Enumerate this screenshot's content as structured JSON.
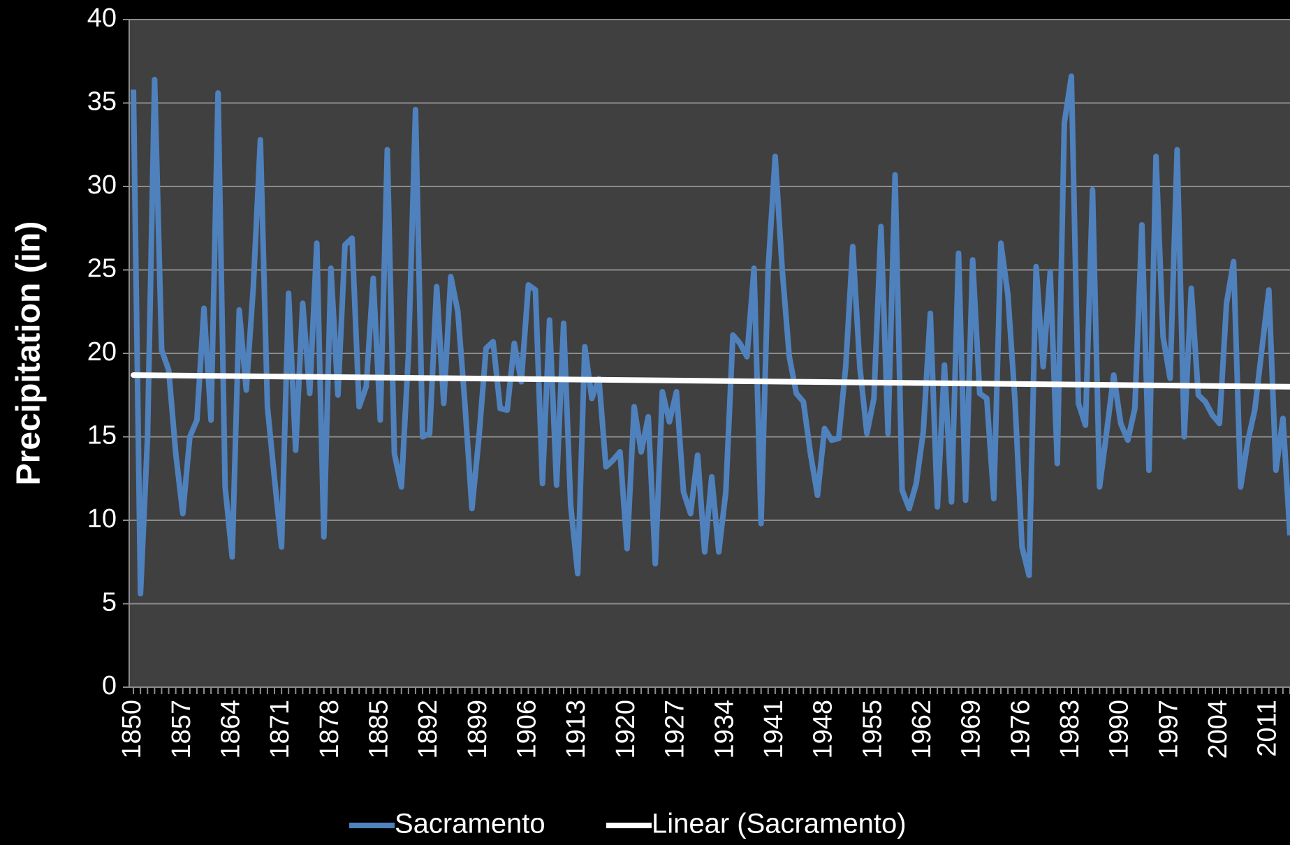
{
  "chart_data": {
    "type": "line",
    "y_label": "Precipitation (in)",
    "x": [
      1850,
      1851,
      1852,
      1853,
      1854,
      1855,
      1856,
      1857,
      1858,
      1859,
      1860,
      1861,
      1862,
      1863,
      1864,
      1865,
      1866,
      1867,
      1868,
      1869,
      1870,
      1871,
      1872,
      1873,
      1874,
      1875,
      1876,
      1877,
      1878,
      1879,
      1880,
      1881,
      1882,
      1883,
      1884,
      1885,
      1886,
      1887,
      1888,
      1889,
      1890,
      1891,
      1892,
      1893,
      1894,
      1895,
      1896,
      1897,
      1898,
      1899,
      1900,
      1901,
      1902,
      1903,
      1904,
      1905,
      1906,
      1907,
      1908,
      1909,
      1910,
      1911,
      1912,
      1913,
      1914,
      1915,
      1916,
      1917,
      1918,
      1919,
      1920,
      1921,
      1922,
      1923,
      1924,
      1925,
      1926,
      1927,
      1928,
      1929,
      1930,
      1931,
      1932,
      1933,
      1934,
      1935,
      1936,
      1937,
      1938,
      1939,
      1940,
      1941,
      1942,
      1943,
      1944,
      1945,
      1946,
      1947,
      1948,
      1949,
      1950,
      1951,
      1952,
      1953,
      1954,
      1955,
      1956,
      1957,
      1958,
      1959,
      1960,
      1961,
      1962,
      1963,
      1964,
      1965,
      1966,
      1967,
      1968,
      1969,
      1970,
      1971,
      1972,
      1973,
      1974,
      1975,
      1976,
      1977,
      1978,
      1979,
      1980,
      1981,
      1982,
      1983,
      1984,
      1985,
      1986,
      1987,
      1988,
      1989,
      1990,
      1991,
      1992,
      1993,
      1994,
      1995,
      1996,
      1997,
      1998,
      1999,
      2000,
      2001,
      2002,
      2003,
      2004,
      2005,
      2006,
      2007,
      2008,
      2009,
      2010,
      2011,
      2012,
      2013,
      2014
    ],
    "series": [
      {
        "name": "Sacramento",
        "color": "#4f81bd",
        "values": [
          35.8,
          5.6,
          15,
          36.4,
          20.2,
          19,
          14,
          10.4,
          15,
          16,
          22.7,
          16,
          35.6,
          12,
          7.8,
          22.6,
          17.8,
          24,
          32.8,
          16.8,
          12.5,
          8.4,
          23.6,
          14.2,
          23,
          17.6,
          26.6,
          9,
          25.1,
          17.5,
          26.5,
          26.9,
          16.8,
          18,
          24.5,
          16,
          32.2,
          14,
          12,
          20,
          34.6,
          15,
          15.2,
          24,
          17,
          24.6,
          22.5,
          17,
          10.7,
          15,
          20.3,
          20.7,
          16.7,
          16.6,
          20.6,
          18.3,
          24.1,
          23.8,
          12.2,
          22,
          12.1,
          21.8,
          10.9,
          6.8,
          20.4,
          17.3,
          18.5,
          13.2,
          13.6,
          14.1,
          8.3,
          16.8,
          14.1,
          16.2,
          7.4,
          17.7,
          15.9,
          17.7,
          11.7,
          10.4,
          13.9,
          8.1,
          12.6,
          8.1,
          11.7,
          21.1,
          20.6,
          19.8,
          25.1,
          9.8,
          25,
          31.8,
          25,
          19.8,
          17.6,
          17.1,
          14,
          11.5,
          15.5,
          14.8,
          14.9,
          19.2,
          26.4,
          19.2,
          15.2,
          17.3,
          27.6,
          15.2,
          30.7,
          11.8,
          10.7,
          12.2,
          15.3,
          22.4,
          10.8,
          19.3,
          11.1,
          26,
          11.2,
          25.6,
          17.6,
          17.3,
          11.3,
          26.6,
          23.5,
          17.2,
          8.4,
          6.7,
          25.2,
          19.2,
          24.9,
          13.4,
          33.8,
          36.6,
          17,
          15.7,
          29.8,
          12,
          15.3,
          18.7,
          15.8,
          14.8,
          16.7,
          27.7,
          13,
          31.8,
          21,
          18.5,
          32.2,
          15,
          23.9,
          17.5,
          17.1,
          16.3,
          15.8,
          23,
          25.5,
          12,
          14.7,
          16.6,
          20.2,
          23.8,
          13,
          16.1,
          9.1
        ]
      }
    ],
    "trendline": {
      "name": "Linear (Sacramento)",
      "color": "#ffffff",
      "start": 18.7,
      "end": 18.0
    },
    "xlim": [
      1849.4,
      2014
    ],
    "xticks": [
      1850,
      1857,
      1864,
      1871,
      1878,
      1885,
      1892,
      1899,
      1906,
      1913,
      1920,
      1927,
      1934,
      1941,
      1948,
      1955,
      1962,
      1969,
      1976,
      1983,
      1990,
      1997,
      2004,
      2011
    ],
    "ylim": [
      0,
      40
    ],
    "yticks": [
      0,
      5,
      10,
      15,
      20,
      25,
      30,
      35,
      40
    ],
    "grid": true,
    "legend": "bottom"
  }
}
